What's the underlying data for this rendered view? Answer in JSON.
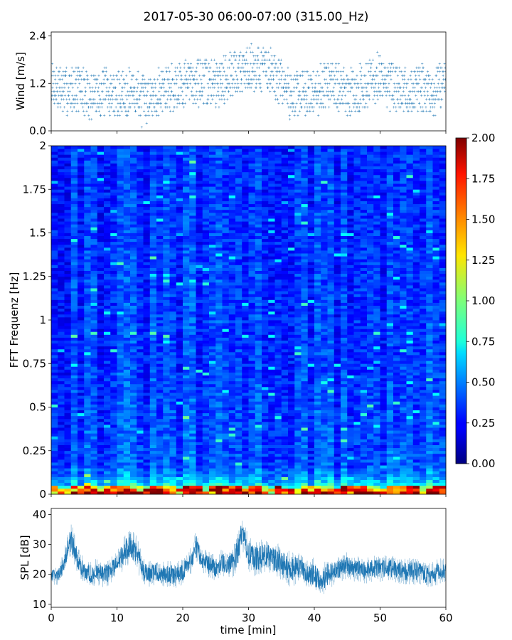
{
  "title": "2017-05-30 06:00-07:00 (315.00_Hz)",
  "chart_data": [
    {
      "type": "scatter",
      "panel": "wind",
      "ylabel": "Wind [m/s]",
      "xlim": [
        0,
        60
      ],
      "ylim": [
        0,
        2.5
      ],
      "yticks": [
        "0.0",
        "1.2",
        "2.4"
      ],
      "color": "#1f77b4",
      "wind_profile_x": [
        0,
        2,
        4,
        6,
        8,
        10,
        12,
        14,
        16,
        18,
        20,
        22,
        24,
        26,
        28,
        30,
        32,
        34,
        36,
        38,
        40,
        42,
        44,
        46,
        48,
        50,
        52,
        54,
        56,
        58,
        60
      ],
      "wind_profile_y": [
        1.2,
        1.0,
        1.1,
        0.9,
        1.0,
        0.9,
        1.0,
        0.8,
        1.0,
        1.1,
        1.2,
        1.3,
        1.2,
        1.3,
        1.5,
        1.6,
        1.6,
        1.4,
        1.0,
        0.9,
        1.0,
        1.2,
        1.1,
        0.9,
        1.2,
        1.3,
        1.1,
        0.9,
        1.1,
        0.9,
        1.4
      ]
    },
    {
      "type": "heatmap",
      "panel": "spectrogram",
      "ylabel": "FFT Frequenz [Hz]",
      "xlim": [
        0,
        60
      ],
      "ylim": [
        0,
        2
      ],
      "yticks": [
        "0",
        "0.25",
        "0.5",
        "0.75",
        "1",
        "1.25",
        "1.5",
        "1.75",
        "2"
      ],
      "colormap": "jet",
      "colorbar_range": [
        0.0,
        2.0
      ],
      "colorbar_ticks": [
        "0.00",
        "0.25",
        "0.50",
        "0.75",
        "1.00",
        "1.25",
        "1.50",
        "1.75",
        "2.00"
      ]
    },
    {
      "type": "line",
      "panel": "spl",
      "xlabel": "time [min]",
      "ylabel": "SPL [dB]",
      "xlim": [
        0,
        60
      ],
      "ylim": [
        9,
        42
      ],
      "yticks": [
        "10",
        "20",
        "30",
        "40"
      ],
      "xticks": [
        "0",
        "10",
        "20",
        "30",
        "40",
        "50",
        "60"
      ],
      "color": "#1f77b4",
      "x": [
        0,
        1,
        2,
        3,
        4,
        5,
        6,
        7,
        8,
        9,
        10,
        11,
        12,
        13,
        14,
        15,
        16,
        17,
        18,
        19,
        20,
        21,
        22,
        23,
        24,
        25,
        26,
        27,
        28,
        29,
        30,
        31,
        32,
        33,
        34,
        35,
        36,
        37,
        38,
        39,
        40,
        41,
        42,
        43,
        44,
        45,
        46,
        47,
        48,
        49,
        50,
        51,
        52,
        53,
        54,
        55,
        56,
        57,
        58,
        59,
        60
      ],
      "y": [
        20,
        19,
        24,
        32,
        25,
        21,
        20,
        21,
        20,
        21,
        24,
        27,
        30,
        27,
        21,
        20,
        21,
        20,
        20,
        20,
        21,
        23,
        29,
        25,
        23,
        22,
        24,
        23,
        25,
        34,
        27,
        25,
        26,
        26,
        25,
        24,
        22,
        22,
        22,
        20,
        20,
        17,
        20,
        21,
        22,
        23,
        22,
        22,
        21,
        22,
        22,
        22,
        22,
        21,
        21,
        21,
        21,
        20,
        20,
        21,
        21
      ],
      "spread": [
        2,
        2,
        3,
        4,
        3,
        3,
        3,
        3,
        3,
        3,
        3,
        4,
        4,
        4,
        3,
        3,
        3,
        3,
        3,
        3,
        3,
        3,
        4,
        3,
        3,
        3,
        3,
        3,
        4,
        4,
        4,
        4,
        4,
        4,
        4,
        4,
        4,
        4,
        3,
        3,
        4,
        3,
        4,
        3,
        3,
        3,
        3,
        3,
        3,
        3,
        3,
        3,
        3,
        3,
        3,
        3,
        3,
        3,
        3,
        3,
        3
      ]
    }
  ]
}
